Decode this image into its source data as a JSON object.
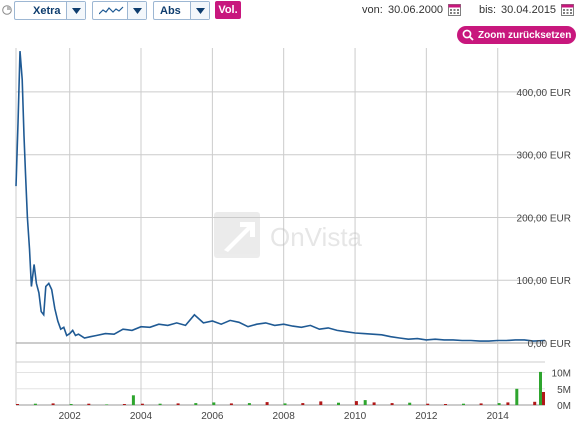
{
  "toolbar": {
    "exchange": "Xetra",
    "scale": "Abs",
    "volume_button": "Vol.",
    "from_label": "von:",
    "from_date": "30.06.2000",
    "to_label": "bis:",
    "to_date": "30.04.2015",
    "zoom_reset": "Zoom zurücksetzen",
    "chart_type_icon": "line-chart-icon",
    "calendar_icon": "calendar-icon"
  },
  "watermark": "OnVista",
  "colors": {
    "line": "#1f5a94",
    "accent": "#c8177d",
    "grid": "#cccccc",
    "vol_up": "#2ea52e",
    "vol_down": "#b01818"
  },
  "chart_data": {
    "type": "line",
    "x_range": [
      "2000-06-30",
      "2015-04-30"
    ],
    "x_ticks": [
      "2002",
      "2004",
      "2006",
      "2008",
      "2010",
      "2012",
      "2014"
    ],
    "y_ticks": [
      "0,00 EUR",
      "100,00 EUR",
      "200,00 EUR",
      "300,00 EUR",
      "400,00 EUR"
    ],
    "ylim": [
      0,
      470
    ],
    "grid": true,
    "series": [
      {
        "values_unit": "EUR",
        "x": [
          "2000-06-30",
          "2000-07-20",
          "2000-08-10",
          "2000-09-01",
          "2000-09-20",
          "2000-10-05",
          "2000-10-25",
          "2000-11-15",
          "2000-12-05",
          "2001-01-01",
          "2001-01-25",
          "2001-02-20",
          "2001-03-15",
          "2001-04-10",
          "2001-05-01",
          "2001-06-01",
          "2001-07-01",
          "2001-08-01",
          "2001-09-01",
          "2001-10-01",
          "2001-11-01",
          "2001-12-01",
          "2002-01-01",
          "2002-02-01",
          "2002-03-01",
          "2002-04-01",
          "2002-06-01",
          "2002-08-01",
          "2002-10-01",
          "2003-01-01",
          "2003-04-01",
          "2003-07-01",
          "2003-10-01",
          "2004-01-01",
          "2004-04-01",
          "2004-07-01",
          "2004-10-01",
          "2005-01-01",
          "2005-04-01",
          "2005-07-01",
          "2005-10-01",
          "2006-01-01",
          "2006-04-01",
          "2006-07-01",
          "2006-10-01",
          "2007-01-01",
          "2007-04-01",
          "2007-07-01",
          "2007-10-01",
          "2008-01-01",
          "2008-04-01",
          "2008-07-01",
          "2008-10-01",
          "2009-01-01",
          "2009-04-01",
          "2009-07-01",
          "2009-10-01",
          "2010-01-01",
          "2010-04-01",
          "2010-07-01",
          "2010-10-01",
          "2011-01-01",
          "2011-04-01",
          "2011-07-01",
          "2011-10-01",
          "2012-01-01",
          "2012-04-01",
          "2012-07-01",
          "2012-10-01",
          "2013-01-01",
          "2013-04-01",
          "2013-07-01",
          "2013-10-01",
          "2014-01-01",
          "2014-04-01",
          "2014-07-01",
          "2014-10-01",
          "2015-01-01",
          "2015-04-30"
        ],
        "values": [
          250,
          350,
          465,
          420,
          330,
          270,
          200,
          150,
          90,
          125,
          95,
          80,
          50,
          45,
          90,
          95,
          85,
          55,
          35,
          22,
          25,
          12,
          15,
          20,
          12,
          14,
          8,
          10,
          12,
          15,
          14,
          22,
          20,
          26,
          25,
          30,
          28,
          32,
          28,
          45,
          32,
          35,
          30,
          36,
          33,
          26,
          30,
          32,
          28,
          30,
          27,
          25,
          28,
          22,
          24,
          20,
          18,
          16,
          15,
          14,
          13,
          10,
          8,
          6,
          7,
          5,
          6,
          5,
          5,
          4,
          4,
          3,
          3,
          4,
          4,
          5,
          5,
          3,
          4
        ]
      }
    ],
    "volume": {
      "y_ticks": [
        "10M",
        "5M",
        "0M"
      ],
      "ylim": [
        0,
        12
      ],
      "x": [
        "2000-07",
        "2001-01",
        "2001-07",
        "2002-01",
        "2002-07",
        "2003-01",
        "2003-07",
        "2003-10",
        "2004-01",
        "2004-07",
        "2005-01",
        "2005-07",
        "2006-01",
        "2006-07",
        "2007-01",
        "2007-07",
        "2008-01",
        "2008-07",
        "2009-01",
        "2009-07",
        "2010-01",
        "2010-04",
        "2010-07",
        "2011-01",
        "2011-07",
        "2012-01",
        "2012-07",
        "2013-01",
        "2013-07",
        "2014-01",
        "2014-04",
        "2014-07",
        "2015-01",
        "2015-03",
        "2015-04"
      ],
      "values": [
        0.3,
        0.4,
        0.5,
        0.3,
        0.4,
        0.2,
        0.3,
        3.0,
        0.4,
        0.4,
        0.5,
        0.6,
        0.8,
        0.5,
        0.6,
        0.9,
        0.5,
        0.6,
        1.1,
        0.7,
        1.2,
        1.5,
        0.8,
        0.6,
        0.7,
        0.4,
        0.3,
        0.4,
        0.5,
        0.6,
        0.8,
        5.0,
        1.0,
        10.2,
        4.0
      ],
      "up": [
        false,
        true,
        false,
        true,
        false,
        true,
        false,
        true,
        false,
        true,
        false,
        true,
        true,
        false,
        true,
        false,
        true,
        false,
        false,
        true,
        false,
        true,
        false,
        false,
        true,
        false,
        false,
        true,
        false,
        true,
        false,
        true,
        false,
        true,
        false
      ]
    }
  }
}
